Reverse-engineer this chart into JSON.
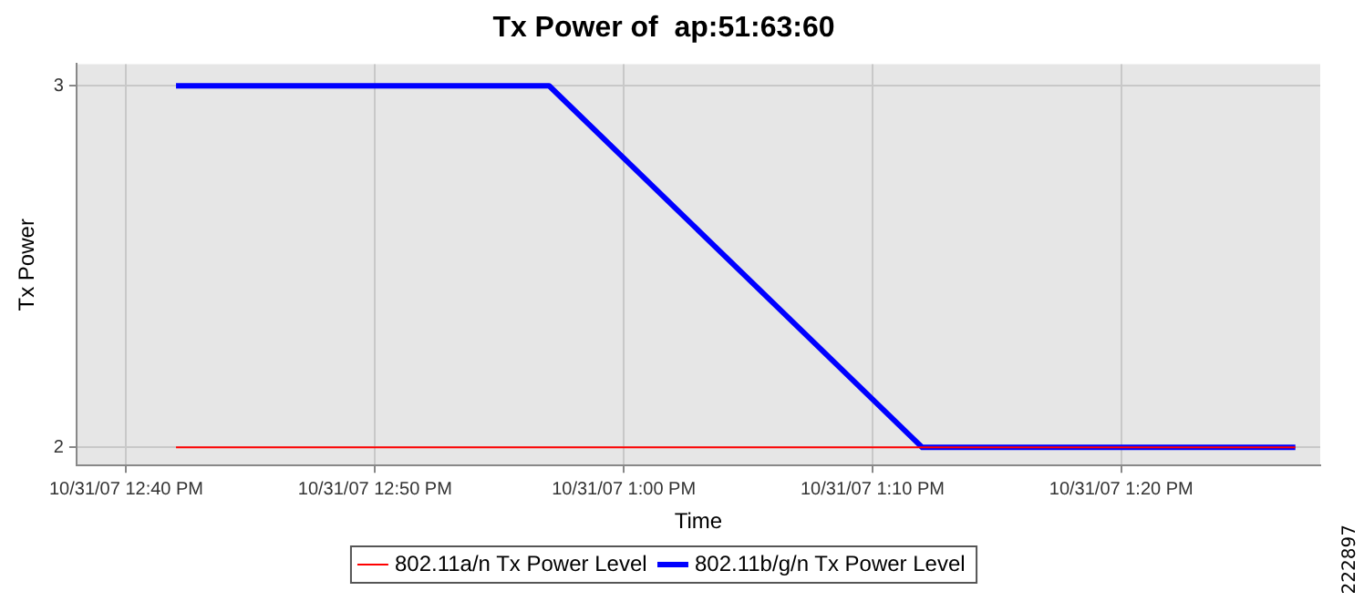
{
  "chart_data": {
    "type": "line",
    "title": "Tx Power of  ap:51:63:60",
    "xlabel": "Time",
    "ylabel": "Tx Power",
    "x": [
      "--10-31T12:42",
      "--10-31T12:57",
      "--10-31T13:12",
      "--10-31T13:27"
    ],
    "series": [
      {
        "name": "802.11a/n Tx Power Level",
        "color": "#ff0000",
        "values": [
          2,
          2,
          2,
          2
        ]
      },
      {
        "name": "802.11b/g/n Tx Power Level",
        "color": "#0000ff",
        "values": [
          3,
          3,
          2,
          2
        ]
      }
    ],
    "xlim": [
      "--10-31T12:38",
      "--10-31T13:28"
    ],
    "xticks": [
      {
        "value": "--10-31T12:40",
        "label": "10/31/07 12:40 PM"
      },
      {
        "value": "--10-31T12:50",
        "label": "10/31/07 12:50 PM"
      },
      {
        "value": "--10-31T13:00",
        "label": "10/31/07 1:00 PM"
      },
      {
        "value": "--10-31T13:10",
        "label": "10/31/07 1:10 PM"
      },
      {
        "value": "--10-31T13:20",
        "label": "10/31/07 1:20 PM"
      }
    ],
    "ylim": [
      1.95,
      3.06
    ],
    "yticks": [
      2,
      3
    ],
    "grid": true,
    "legend": "bottom",
    "marker": "none",
    "line_style": "solid",
    "annotations": [
      "222897"
    ]
  }
}
